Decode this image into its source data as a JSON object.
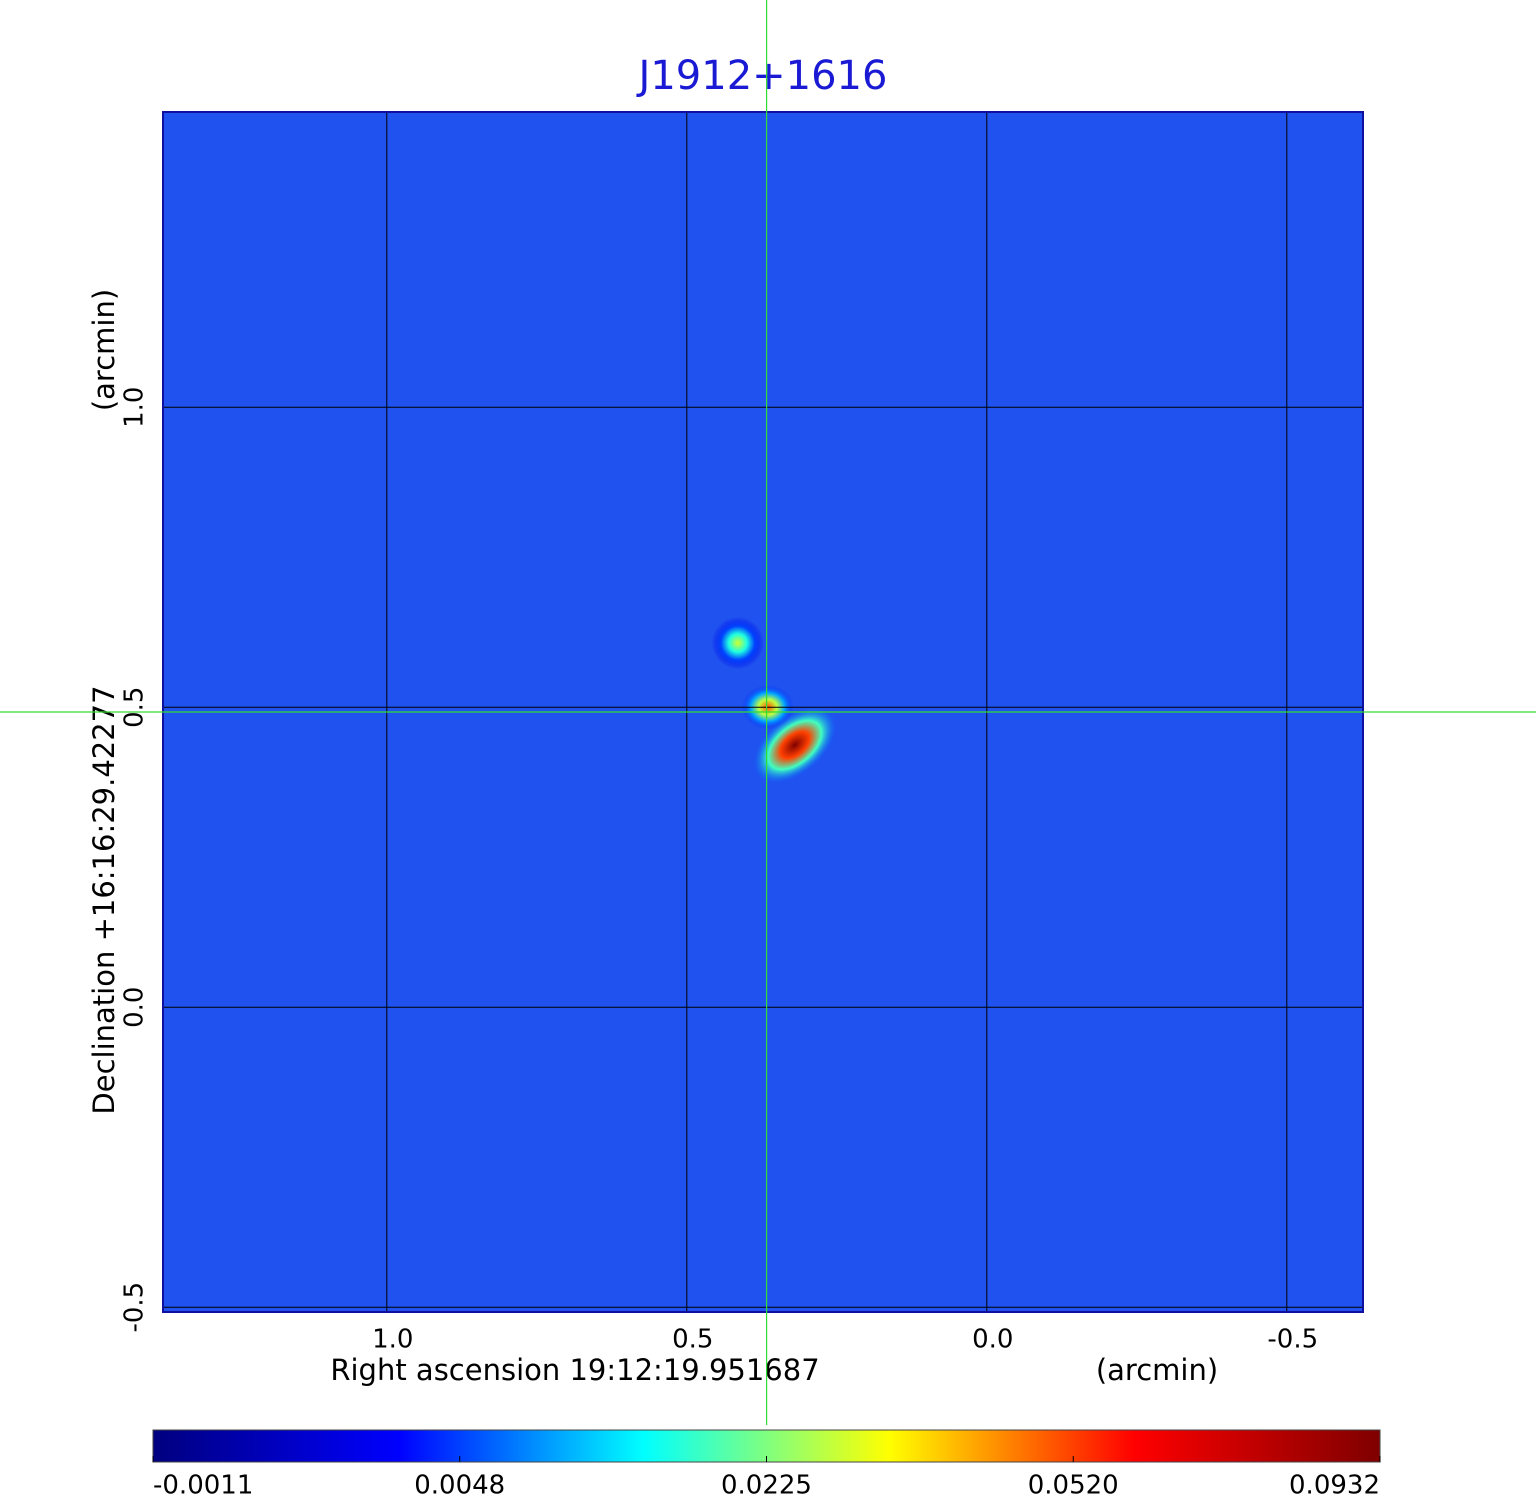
{
  "chart_data": {
    "type": "image",
    "title": "J1912+1616",
    "x_label": "Right ascension  19:12:19.951687",
    "x_unit": "(arcmin)",
    "y_label": "Declination  +16:16:29.42277",
    "y_unit": "(arcmin)",
    "xlim": [
      1.373,
      -0.627
    ],
    "ylim": [
      -0.508,
      1.492
    ],
    "xticks": [
      {
        "value": 1,
        "label": "1.0"
      },
      0.5,
      {
        "value": 0,
        "label": "0.0"
      },
      -0.5
    ],
    "yticks": [
      {
        "value": 1,
        "label": "1.0"
      },
      0.5,
      {
        "value": 0,
        "label": "0.0"
      },
      -0.5
    ],
    "grid": true,
    "background_color": "#1f52ef",
    "crosshair": {
      "x": 0.367,
      "y": 0.492,
      "color": "#33dd33"
    },
    "sources": [
      {
        "x": 0.32,
        "y": 0.437,
        "value": 0.0932
      },
      {
        "x": 0.365,
        "y": 0.5,
        "value": 0.05
      },
      {
        "x": 0.415,
        "y": 0.607,
        "value": 0.03
      }
    ],
    "colorbar": {
      "ticks": [
        -0.0011,
        0.0048,
        0.0225,
        {
          "value": 0.052,
          "label": "0.0520"
        },
        0.0932
      ],
      "colormap": [
        "#00007f",
        "#0000ff",
        "#00ffff",
        "#ffff00",
        "#ff0000",
        "#7f0000"
      ]
    }
  }
}
